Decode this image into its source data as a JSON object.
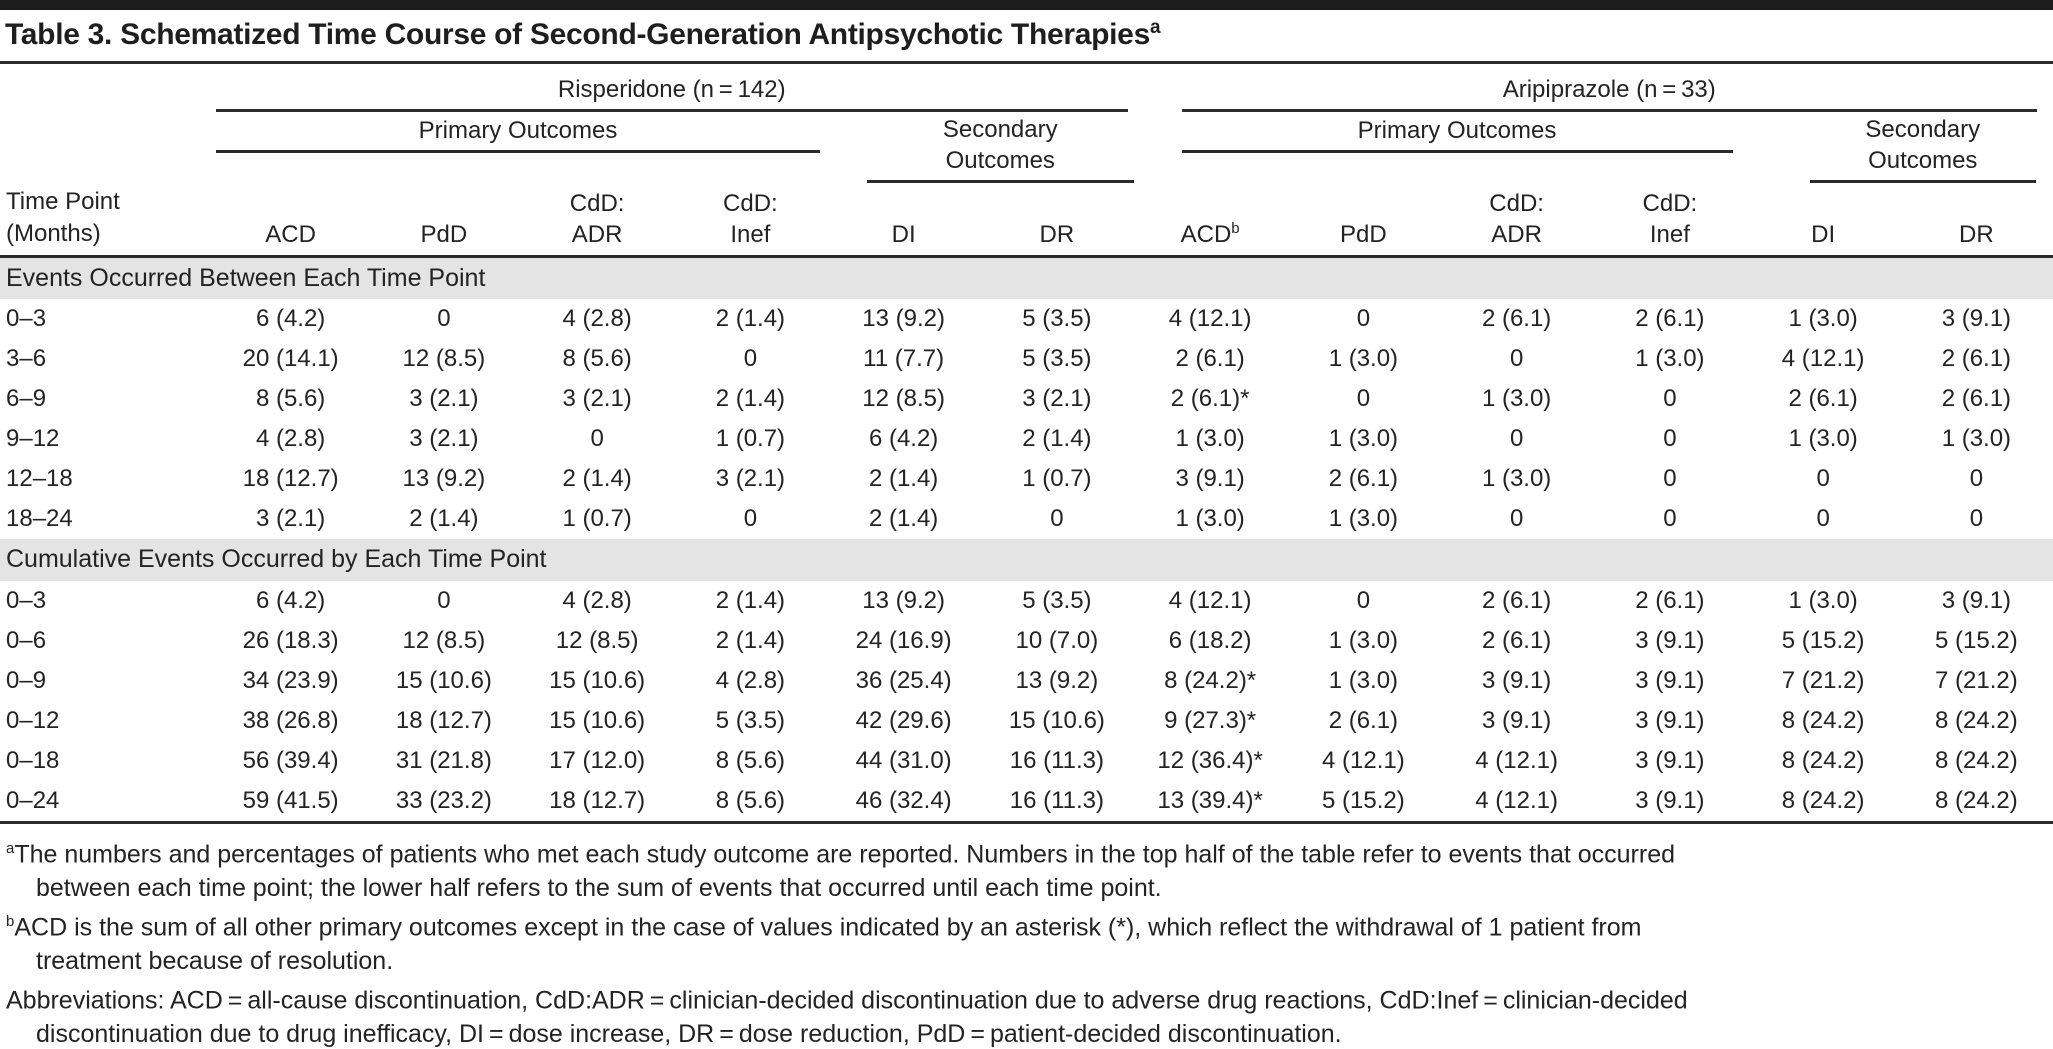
{
  "title": {
    "text": "Table 3. Schematized Time Course of Second-Generation Antipsychotic Therapies",
    "sup": "a"
  },
  "header": {
    "time_point": {
      "line1": "Time Point",
      "line2": "(Months)"
    },
    "groups": [
      {
        "label": "Risperidone (n = 142)"
      },
      {
        "label": "Aripiprazole (n = 33)"
      }
    ],
    "primary": "Primary Outcomes",
    "secondary": {
      "line1": "Secondary",
      "line2": "Outcomes"
    },
    "columns": [
      {
        "text": "ACD"
      },
      {
        "text": "PdD"
      },
      {
        "text": "CdD:\nADR"
      },
      {
        "text": "CdD:\nInef"
      },
      {
        "text": "DI"
      },
      {
        "text": "DR"
      },
      {
        "text": "ACD",
        "sup": "b"
      },
      {
        "text": "PdD"
      },
      {
        "text": "CdD:\nADR"
      },
      {
        "text": "CdD:\nInef"
      },
      {
        "text": "DI"
      },
      {
        "text": "DR"
      }
    ]
  },
  "sections": [
    {
      "label": "Events Occurred Between Each Time Point",
      "rows": [
        {
          "time": "0–3",
          "cells": [
            "6 (4.2)",
            "0",
            "4 (2.8)",
            "2 (1.4)",
            "13 (9.2)",
            "5 (3.5)",
            "4 (12.1)",
            "0",
            "2 (6.1)",
            "2 (6.1)",
            "1 (3.0)",
            "3 (9.1)"
          ]
        },
        {
          "time": "3–6",
          "cells": [
            "20 (14.1)",
            "12 (8.5)",
            "8 (5.6)",
            "0",
            "11 (7.7)",
            "5 (3.5)",
            "2 (6.1)",
            "1 (3.0)",
            "0",
            "1 (3.0)",
            "4 (12.1)",
            "2 (6.1)"
          ]
        },
        {
          "time": "6–9",
          "cells": [
            "8 (5.6)",
            "3 (2.1)",
            "3 (2.1)",
            "2 (1.4)",
            "12 (8.5)",
            "3 (2.1)",
            "2 (6.1)*",
            "0",
            "1 (3.0)",
            "0",
            "2 (6.1)",
            "2 (6.1)"
          ]
        },
        {
          "time": "9–12",
          "cells": [
            "4 (2.8)",
            "3 (2.1)",
            "0",
            "1 (0.7)",
            "6 (4.2)",
            "2 (1.4)",
            "1 (3.0)",
            "1 (3.0)",
            "0",
            "0",
            "1 (3.0)",
            "1 (3.0)"
          ]
        },
        {
          "time": "12–18",
          "cells": [
            "18 (12.7)",
            "13 (9.2)",
            "2 (1.4)",
            "3 (2.1)",
            "2 (1.4)",
            "1 (0.7)",
            "3 (9.1)",
            "2 (6.1)",
            "1 (3.0)",
            "0",
            "0",
            "0"
          ]
        },
        {
          "time": "18–24",
          "cells": [
            "3 (2.1)",
            "2 (1.4)",
            "1 (0.7)",
            "0",
            "2 (1.4)",
            "0",
            "1 (3.0)",
            "1 (3.0)",
            "0",
            "0",
            "0",
            "0"
          ]
        }
      ]
    },
    {
      "label": "Cumulative Events Occurred by Each Time Point",
      "rows": [
        {
          "time": "0–3",
          "cells": [
            "6 (4.2)",
            "0",
            "4 (2.8)",
            "2 (1.4)",
            "13 (9.2)",
            "5 (3.5)",
            "4 (12.1)",
            "0",
            "2 (6.1)",
            "2 (6.1)",
            "1 (3.0)",
            "3 (9.1)"
          ]
        },
        {
          "time": "0–6",
          "cells": [
            "26 (18.3)",
            "12 (8.5)",
            "12 (8.5)",
            "2 (1.4)",
            "24 (16.9)",
            "10 (7.0)",
            "6 (18.2)",
            "1 (3.0)",
            "2 (6.1)",
            "3 (9.1)",
            "5 (15.2)",
            "5 (15.2)"
          ]
        },
        {
          "time": "0–9",
          "cells": [
            "34 (23.9)",
            "15 (10.6)",
            "15 (10.6)",
            "4 (2.8)",
            "36 (25.4)",
            "13 (9.2)",
            "8 (24.2)*",
            "1 (3.0)",
            "3 (9.1)",
            "3 (9.1)",
            "7 (21.2)",
            "7 (21.2)"
          ]
        },
        {
          "time": "0–12",
          "cells": [
            "38 (26.8)",
            "18 (12.7)",
            "15 (10.6)",
            "5 (3.5)",
            "42 (29.6)",
            "15 (10.6)",
            "9 (27.3)*",
            "2 (6.1)",
            "3 (9.1)",
            "3 (9.1)",
            "8 (24.2)",
            "8 (24.2)"
          ]
        },
        {
          "time": "0–18",
          "cells": [
            "56 (39.4)",
            "31 (21.8)",
            "17 (12.0)",
            "8 (5.6)",
            "44 (31.0)",
            "16 (11.3)",
            "12 (36.4)*",
            "4 (12.1)",
            "4 (12.1)",
            "3 (9.1)",
            "8 (24.2)",
            "8 (24.2)"
          ]
        },
        {
          "time": "0–24",
          "cells": [
            "59 (41.5)",
            "33 (23.2)",
            "18 (12.7)",
            "8 (5.6)",
            "46 (32.4)",
            "16 (11.3)",
            "13 (39.4)*",
            "5 (15.2)",
            "4 (12.1)",
            "3 (9.1)",
            "8 (24.2)",
            "8 (24.2)"
          ]
        }
      ]
    }
  ],
  "footnotes": [
    {
      "sup": "a",
      "text": "The numbers and percentages of patients who met each study outcome are reported. Numbers in the top half of the table refer to events that occurred\nbetween each time point; the lower half refers to the sum of events that occurred until each time point."
    },
    {
      "sup": "b",
      "text": "ACD is the sum of all other primary outcomes except in the case of values indicated by an asterisk (*), which reflect the withdrawal of 1 patient from\ntreatment because of resolution."
    },
    {
      "sup": "",
      "text": "Abbreviations: ACD = all-cause discontinuation, CdD:ADR = clinician-decided discontinuation due to adverse drug reactions, CdD:Inef = clinician-decided\ndiscontinuation due to drug inefficacy, DI = dose increase, DR = dose reduction, PdD = patient-decided discontinuation."
    }
  ],
  "colors": {
    "rule": "#2b2b2b",
    "section_band": "#e4e4e4",
    "text": "#232323",
    "top_bar": "#1d1d1d"
  }
}
